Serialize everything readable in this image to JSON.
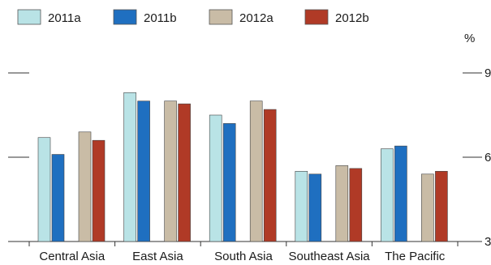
{
  "chart_data": {
    "type": "bar",
    "title": "",
    "unit_label": "%",
    "categories": [
      "Central Asia",
      "East Asia",
      "South Asia",
      "Southeast Asia",
      "The Pacific"
    ],
    "series": [
      {
        "name": "2011a",
        "color": "#b9e3e6",
        "values": [
          6.7,
          8.3,
          7.5,
          5.5,
          6.3
        ]
      },
      {
        "name": "2011b",
        "color": "#1f6fc0",
        "values": [
          6.1,
          8.0,
          7.2,
          5.4,
          6.4
        ]
      },
      {
        "name": "2012a",
        "color": "#c9bca6",
        "values": [
          6.9,
          8.0,
          8.0,
          5.7,
          5.4
        ]
      },
      {
        "name": "2012b",
        "color": "#b03a26",
        "values": [
          6.6,
          7.9,
          7.7,
          5.6,
          5.5
        ]
      }
    ],
    "ylim": [
      3,
      9
    ],
    "yticks": [
      3,
      6,
      9
    ],
    "legend_position": "top"
  }
}
